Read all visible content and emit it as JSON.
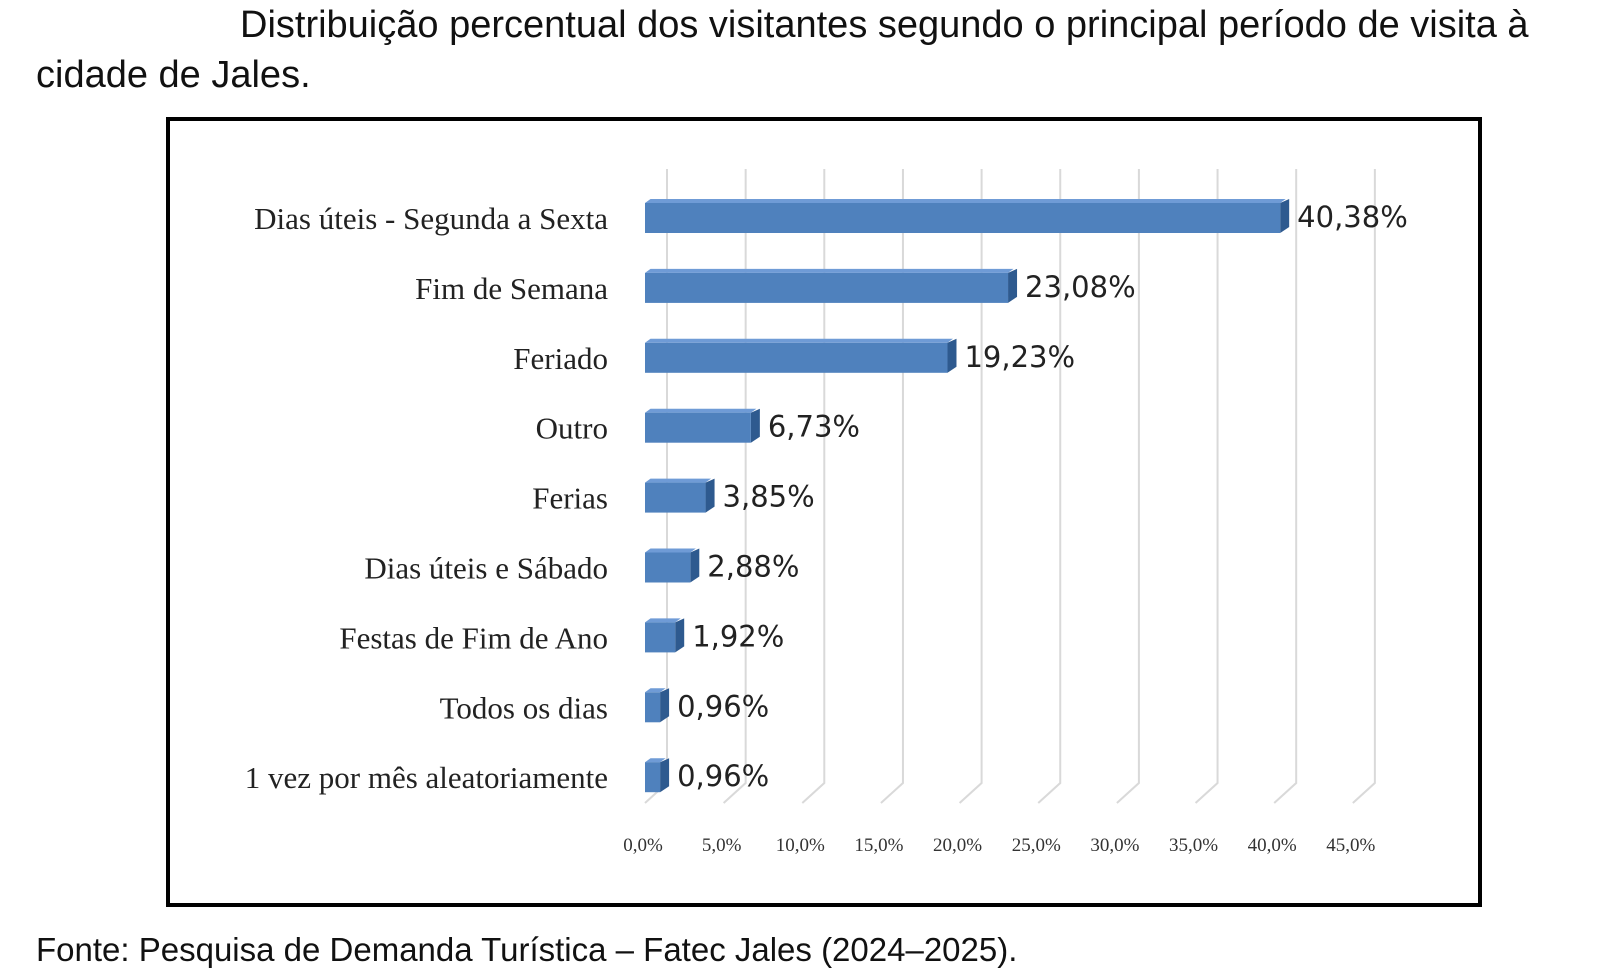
{
  "caption": "Distribuição percentual dos visitantes segundo o principal período de visita à cidade de Jales.",
  "source": "Fonte: Pesquisa de Demanda Turística – Fatec Jales (2024–2025).",
  "colors": {
    "bar_front": "#4f81bd",
    "bar_top": "#6f9bd6",
    "bar_side": "#2e5a8f",
    "grid": "#d9d9d9",
    "border": "#000000"
  },
  "chart_data": {
    "type": "bar",
    "orientation": "horizontal",
    "style": "3d",
    "title": "",
    "xlabel": "",
    "ylabel": "",
    "grid": true,
    "legend": "none",
    "xlim": [
      0,
      45
    ],
    "x_ticks": [
      "0,0%",
      "5,0%",
      "10,0%",
      "15,0%",
      "20,0%",
      "25,0%",
      "30,0%",
      "35,0%",
      "40,0%",
      "45,0%"
    ],
    "categories": [
      "Dias úteis - Segunda a Sexta",
      "Fim de Semana",
      "Feriado",
      "Outro",
      "Ferias",
      "Dias úteis e Sábado",
      "Festas de Fim de Ano",
      "Todos os dias",
      "1 vez por mês aleatoriamente"
    ],
    "values": [
      40.38,
      23.08,
      19.23,
      6.73,
      3.85,
      2.88,
      1.92,
      0.96,
      0.96
    ],
    "value_labels": [
      "40,38%",
      "23,08%",
      "19,23%",
      "6,73%",
      "3,85%",
      "2,88%",
      "1,92%",
      "0,96%",
      "0,96%"
    ]
  }
}
